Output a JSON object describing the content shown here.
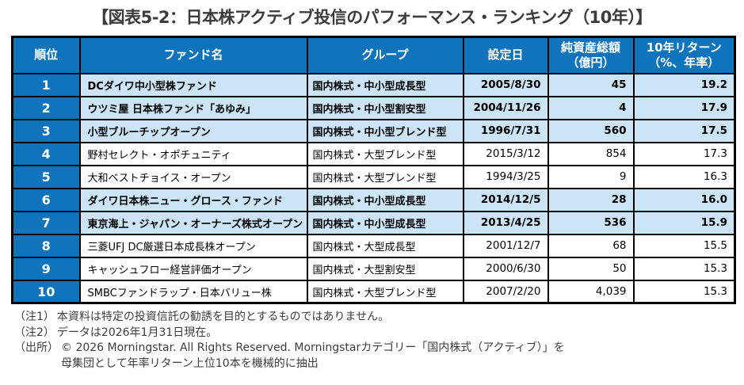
{
  "title": "【図表5-2：日本株アクティブ投信のパフォーマンス・ランキング（10年）】",
  "colors": {
    "header_bg": "#0f74bb",
    "header_text": "#ffffff",
    "highlight_row_bg": "#cbe4f6",
    "border": "#000000",
    "title_text": "#3c3c3c"
  },
  "table": {
    "headers": [
      "順位",
      "ファンド名",
      "グループ",
      "設定日",
      "純資産総額\n（億円）",
      "10年リターン\n（%、年率）"
    ],
    "rows": [
      {
        "rank": "1",
        "fund": "DCダイワ中小型株ファンド",
        "group": "国内株式・中小型成長型",
        "date": "2005/8/30",
        "assets": "45",
        "return": "19.2",
        "highlight": true
      },
      {
        "rank": "2",
        "fund": "ウツミ屋 日本株ファンド「あゆみ」",
        "group": "国内株式・中小型割安型",
        "date": "2004/11/26",
        "assets": "4",
        "return": "17.9",
        "highlight": true
      },
      {
        "rank": "3",
        "fund": "小型ブルーチップオープン",
        "group": "国内株式・中小型ブレンド型",
        "date": "1996/7/31",
        "assets": "560",
        "return": "17.5",
        "highlight": true
      },
      {
        "rank": "4",
        "fund": "野村セレクト・オポチュニティ",
        "group": "国内株式・大型ブレンド型",
        "date": "2015/3/12",
        "assets": "854",
        "return": "17.3",
        "highlight": false
      },
      {
        "rank": "5",
        "fund": "大和ベストチョイス・オープン",
        "group": "国内株式・大型ブレンド型",
        "date": "1994/3/25",
        "assets": "9",
        "return": "16.3",
        "highlight": false
      },
      {
        "rank": "6",
        "fund": "ダイワ日本株ニュー・グロース・ファンド",
        "group": "国内株式・中小型成長型",
        "date": "2014/12/5",
        "assets": "28",
        "return": "16.0",
        "highlight": true
      },
      {
        "rank": "7",
        "fund": "東京海上・ジャパン・オーナーズ株式オープン",
        "group": "国内株式・中小型成長型",
        "date": "2013/4/25",
        "assets": "536",
        "return": "15.9",
        "highlight": true
      },
      {
        "rank": "8",
        "fund": "三菱UFJ DC厳選日本成長株オープン",
        "group": "国内株式・大型成長型",
        "date": "2001/12/7",
        "assets": "68",
        "return": "15.5",
        "highlight": false
      },
      {
        "rank": "9",
        "fund": "キャッシュフロー経営評価オープン",
        "group": "国内株式・大型割安型",
        "date": "2000/6/30",
        "assets": "50",
        "return": "15.3",
        "highlight": false
      },
      {
        "rank": "10",
        "fund": "SMBCファンドラップ・日本バリュー株",
        "group": "国内株式・大型ブレンド型",
        "date": "2007/2/20",
        "assets": "4,039",
        "return": "15.3",
        "highlight": false
      }
    ]
  },
  "notes": [
    {
      "label": "（注1）",
      "text": "本資料は特定の投資信託の勧誘を目的とするものではありません。"
    },
    {
      "label": "（注2）",
      "text": "データは2026年1月31日現在。"
    },
    {
      "label": "（出所）",
      "text": "© 2026 Morningstar. All Rights Reserved. Morningstarカテゴリー「国内株式（アクティブ）」を\n母集団として年率リターン上位10本を機械的に抽出"
    }
  ]
}
